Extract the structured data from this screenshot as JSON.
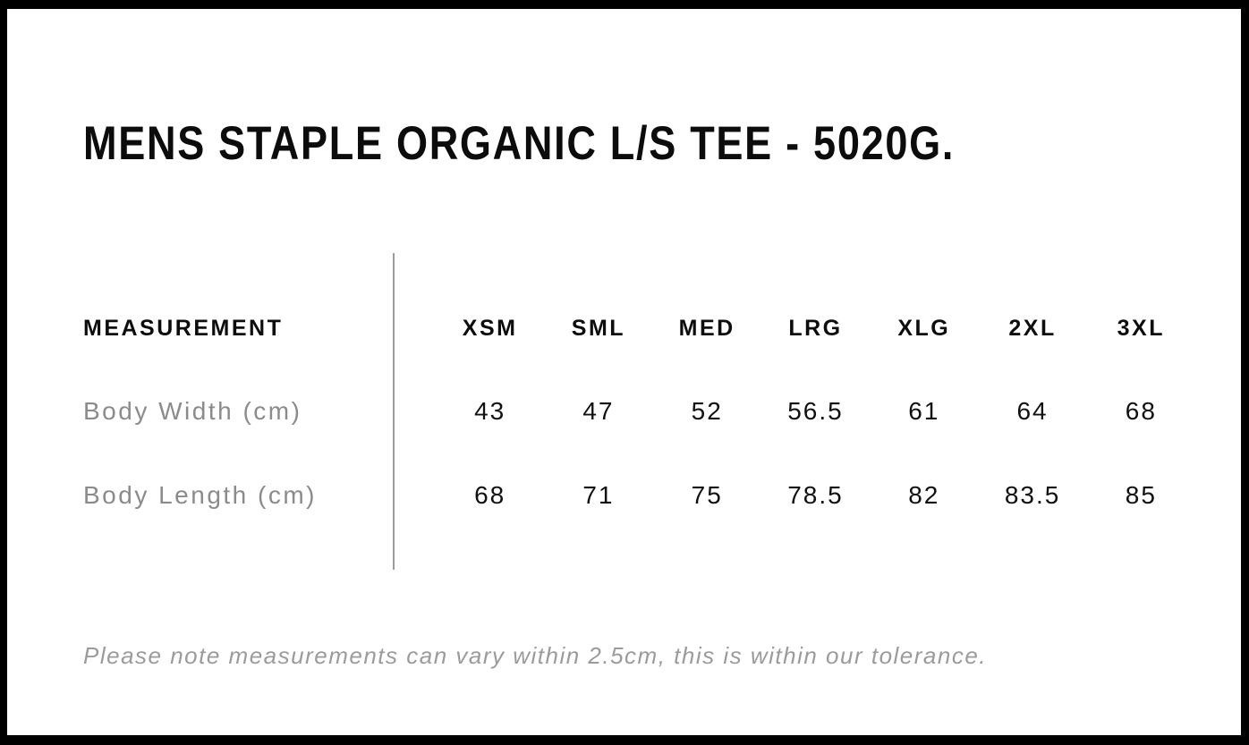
{
  "page": {
    "title": "MENS STAPLE ORGANIC L/S TEE - 5020G.",
    "note": "Please note measurements can vary within 2.5cm, this is within our tolerance."
  },
  "colors": {
    "frame": "#000000",
    "heading_text": "#0d0d0d",
    "value_text": "#111111",
    "muted_label": "#8b8b8b",
    "note_text": "#9b9b9b",
    "divider_line": "#9c9c9c",
    "background": "#ffffff"
  },
  "size_chart": {
    "measurement_header": "MEASUREMENT",
    "sizes": [
      "XSM",
      "SML",
      "MED",
      "LRG",
      "XLG",
      "2XL",
      "3XL"
    ],
    "rows": [
      {
        "label": "Body Width (cm)",
        "values": [
          "43",
          "47",
          "52",
          "56.5",
          "61",
          "64",
          "68"
        ]
      },
      {
        "label": "Body Length (cm)",
        "values": [
          "68",
          "71",
          "75",
          "78.5",
          "82",
          "83.5",
          "85"
        ]
      }
    ]
  },
  "chart_data": {
    "type": "table",
    "title": "MENS STAPLE ORGANIC L/S TEE - 5020G.",
    "columns": [
      "MEASUREMENT",
      "XSM",
      "SML",
      "MED",
      "LRG",
      "XLG",
      "2XL",
      "3XL"
    ],
    "rows": [
      [
        "Body Width (cm)",
        43,
        47,
        52,
        56.5,
        61,
        64,
        68
      ],
      [
        "Body Length (cm)",
        68,
        71,
        75,
        78.5,
        82,
        83.5,
        85
      ]
    ],
    "note": "Please note measurements can vary within 2.5cm, this is within our tolerance."
  }
}
